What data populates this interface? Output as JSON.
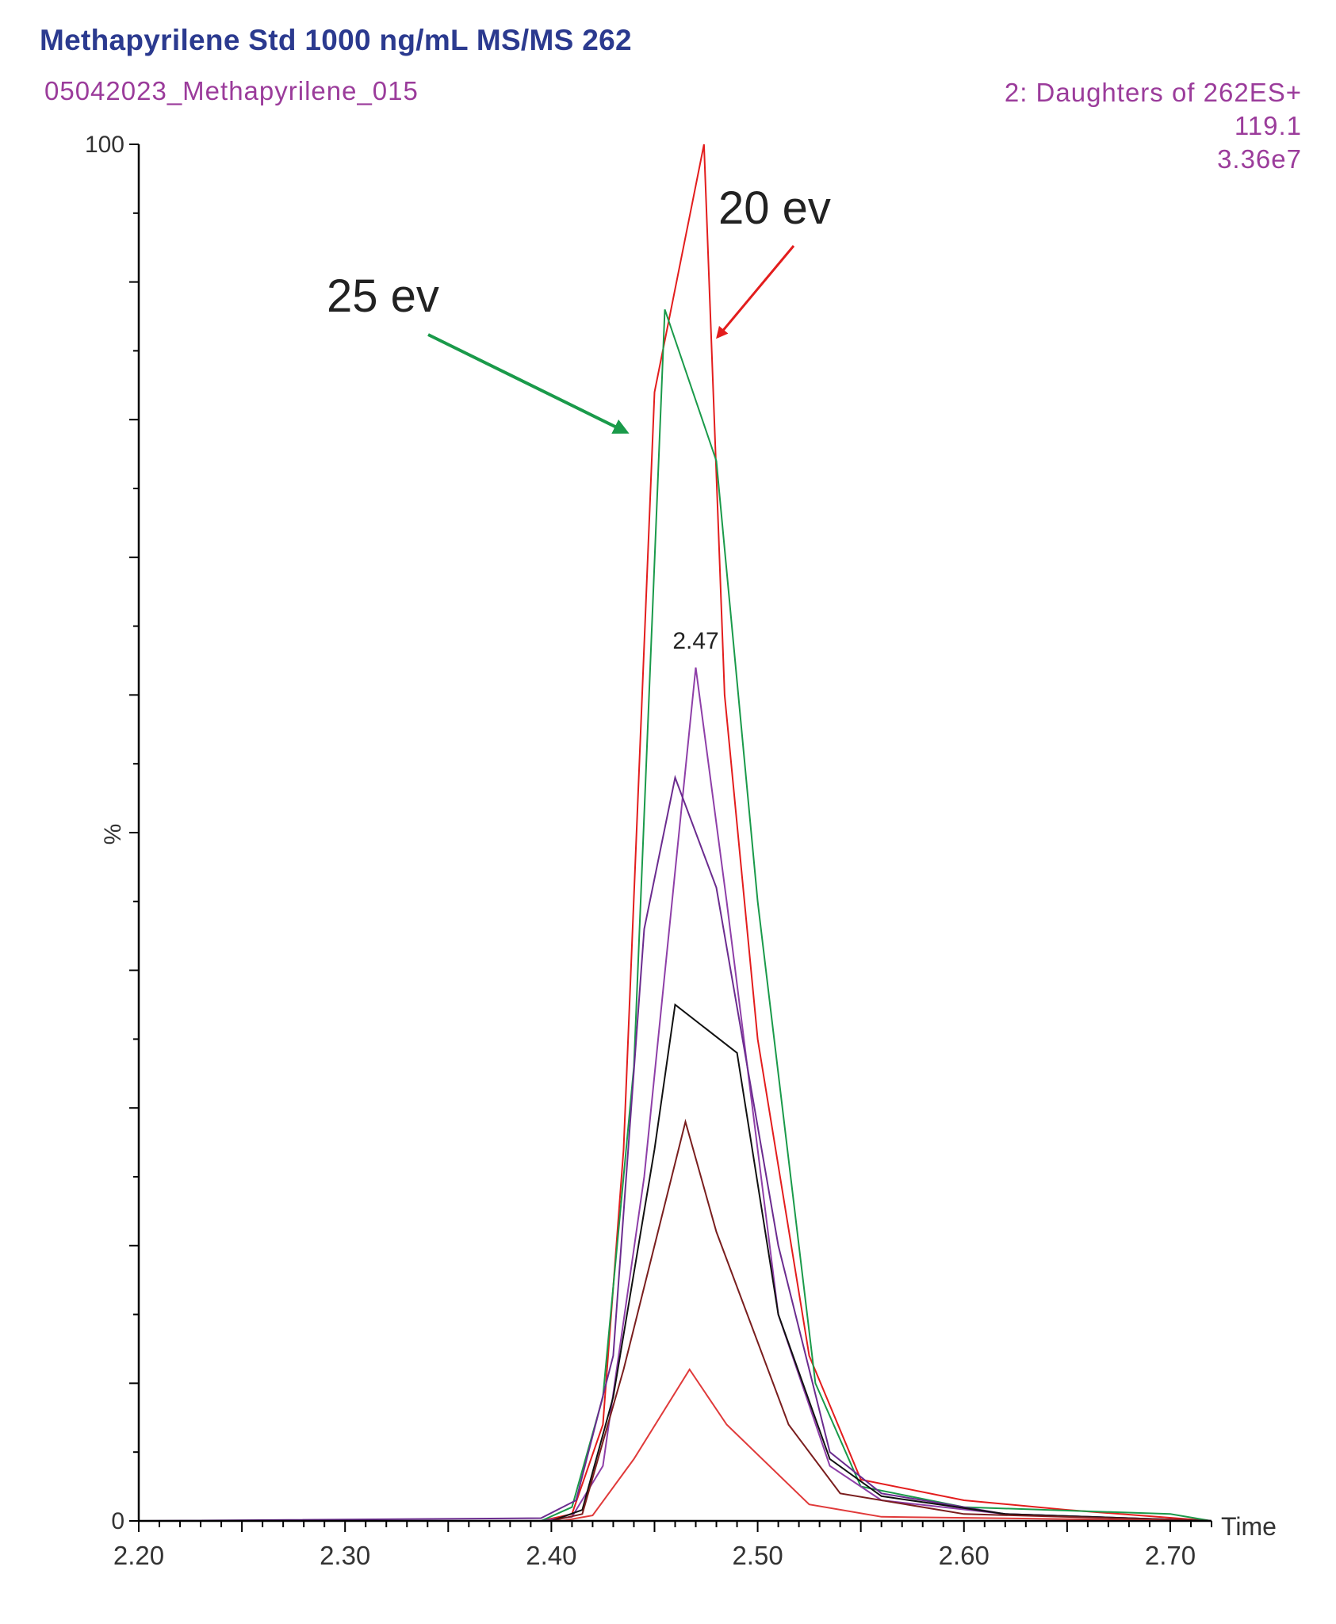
{
  "header": {
    "title": "Methapyrilene Std 1000 ng/mL MS/MS 262",
    "sample": "05042023_Methapyrilene_015",
    "function": "2: Daughters of 262ES+",
    "mass": "119.1",
    "intensity": "3.36e7"
  },
  "chart_data": {
    "type": "line",
    "xlabel": "Time",
    "ylabel": "%",
    "xlim": [
      2.2,
      2.72
    ],
    "ylim": [
      0,
      100
    ],
    "x_ticks": [
      "2.20",
      "2.30",
      "2.40",
      "2.50",
      "2.60",
      "2.70"
    ],
    "y_ticks": [
      "0",
      "100"
    ],
    "peak_label": {
      "text": "2.47",
      "x": 2.47,
      "y": 62.5
    },
    "annotations": [
      {
        "text": "20 ev",
        "color": "#e31d1d"
      },
      {
        "text": "25 ev",
        "color": "#1a9a4a"
      }
    ],
    "series": [
      {
        "color": "#e31d1d",
        "points": [
          [
            2.2,
            0
          ],
          [
            2.395,
            0
          ],
          [
            2.41,
            0.5
          ],
          [
            2.425,
            7
          ],
          [
            2.435,
            27
          ],
          [
            2.45,
            82
          ],
          [
            2.474,
            100
          ],
          [
            2.484,
            60
          ],
          [
            2.5,
            35
          ],
          [
            2.525,
            12
          ],
          [
            2.55,
            3
          ],
          [
            2.6,
            1.5
          ],
          [
            2.65,
            0.8
          ],
          [
            2.72,
            0
          ]
        ]
      },
      {
        "color": "#1a9a4a",
        "points": [
          [
            2.2,
            0
          ],
          [
            2.395,
            0
          ],
          [
            2.41,
            1
          ],
          [
            2.425,
            9
          ],
          [
            2.44,
            33
          ],
          [
            2.455,
            88
          ],
          [
            2.48,
            77
          ],
          [
            2.5,
            45
          ],
          [
            2.528,
            10
          ],
          [
            2.55,
            2.5
          ],
          [
            2.6,
            1
          ],
          [
            2.7,
            0.5
          ],
          [
            2.72,
            0
          ]
        ]
      },
      {
        "color": "#8e3fa8",
        "points": [
          [
            2.2,
            0
          ],
          [
            2.395,
            0
          ],
          [
            2.41,
            0.3
          ],
          [
            2.425,
            4
          ],
          [
            2.445,
            25
          ],
          [
            2.47,
            62
          ],
          [
            2.485,
            45
          ],
          [
            2.51,
            15
          ],
          [
            2.535,
            4
          ],
          [
            2.56,
            1.5
          ],
          [
            2.62,
            0.5
          ],
          [
            2.72,
            0
          ]
        ]
      },
      {
        "color": "#6b2c8f",
        "points": [
          [
            2.2,
            0
          ],
          [
            2.395,
            0.2
          ],
          [
            2.412,
            1.5
          ],
          [
            2.43,
            12
          ],
          [
            2.445,
            43
          ],
          [
            2.46,
            54
          ],
          [
            2.48,
            46
          ],
          [
            2.51,
            20
          ],
          [
            2.535,
            5
          ],
          [
            2.56,
            2
          ],
          [
            2.62,
            0.5
          ],
          [
            2.72,
            0
          ]
        ]
      },
      {
        "color": "#111111",
        "points": [
          [
            2.2,
            0
          ],
          [
            2.4,
            0
          ],
          [
            2.415,
            0.8
          ],
          [
            2.43,
            9
          ],
          [
            2.45,
            27
          ],
          [
            2.46,
            37.5
          ],
          [
            2.49,
            34
          ],
          [
            2.51,
            15
          ],
          [
            2.535,
            4.5
          ],
          [
            2.56,
            1.8
          ],
          [
            2.62,
            0.5
          ],
          [
            2.72,
            0
          ]
        ]
      },
      {
        "color": "#7a1e1e",
        "points": [
          [
            2.2,
            0
          ],
          [
            2.4,
            0
          ],
          [
            2.415,
            0.5
          ],
          [
            2.435,
            11
          ],
          [
            2.465,
            29
          ],
          [
            2.48,
            21
          ],
          [
            2.515,
            7
          ],
          [
            2.54,
            2
          ],
          [
            2.6,
            0.5
          ],
          [
            2.72,
            0
          ]
        ]
      },
      {
        "color": "#e03a3a",
        "points": [
          [
            2.2,
            0
          ],
          [
            2.405,
            0
          ],
          [
            2.42,
            0.4
          ],
          [
            2.44,
            4.5
          ],
          [
            2.467,
            11
          ],
          [
            2.485,
            7
          ],
          [
            2.525,
            1.2
          ],
          [
            2.56,
            0.3
          ],
          [
            2.72,
            0
          ]
        ]
      }
    ]
  }
}
